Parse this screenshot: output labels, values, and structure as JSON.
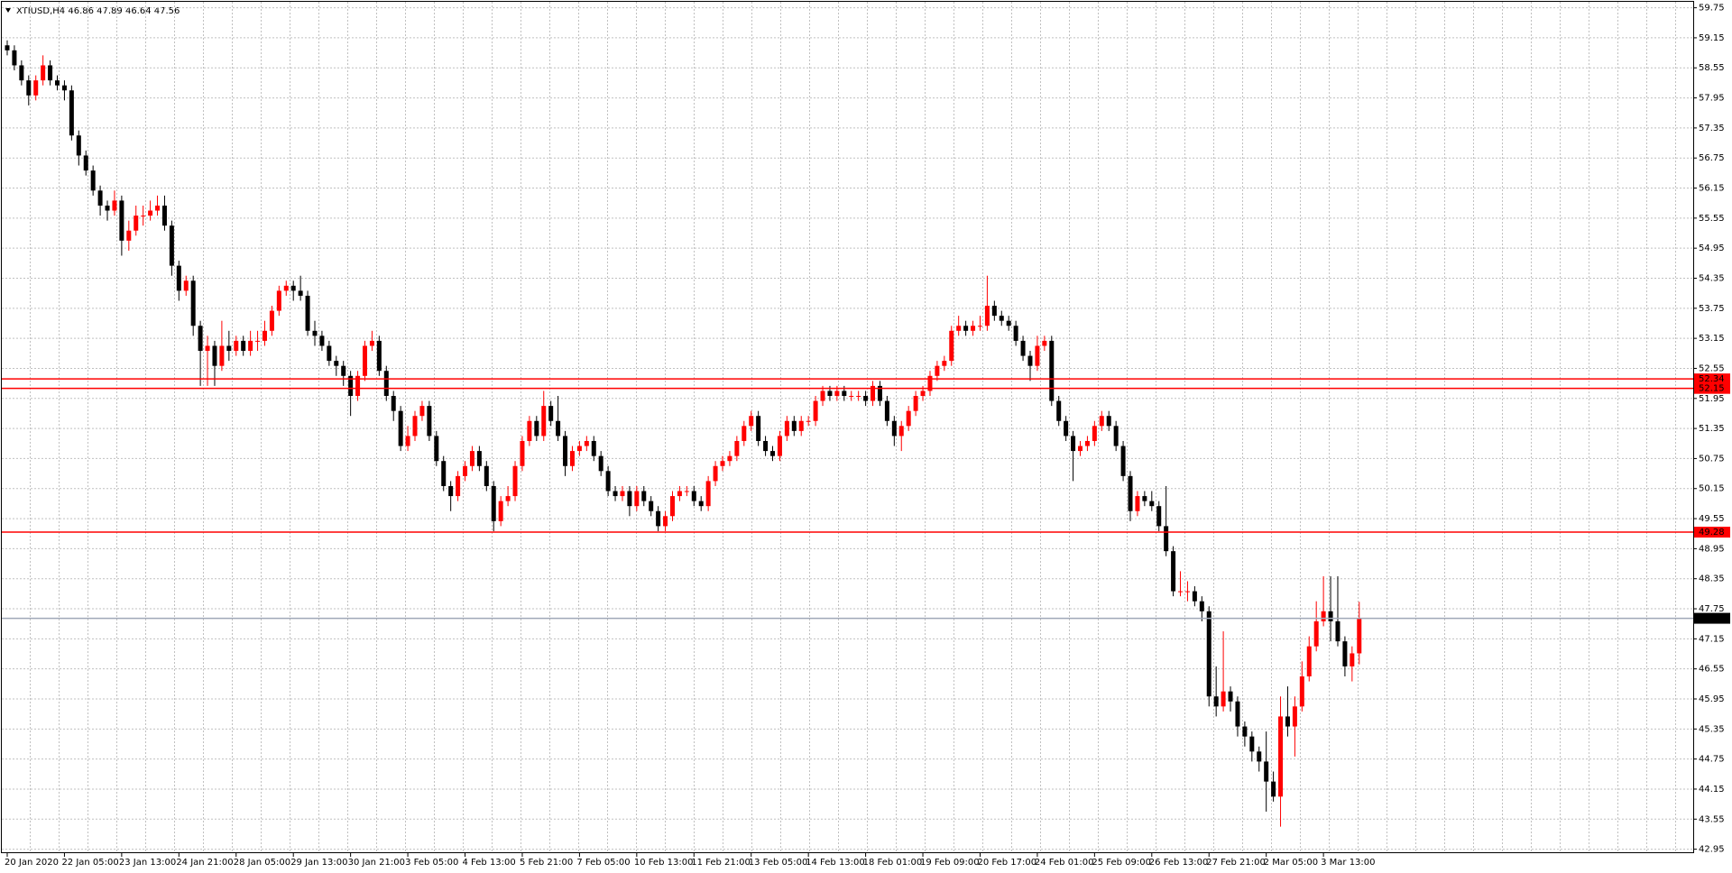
{
  "chart_data": {
    "type": "candlestick",
    "title": "XTIUSD,H4  46.86 47.89 46.64 47.56",
    "ylim": [
      42.95,
      59.75
    ],
    "yticks": [
      59.75,
      59.15,
      58.55,
      57.95,
      57.35,
      56.75,
      56.15,
      55.55,
      54.95,
      54.35,
      53.75,
      53.15,
      52.55,
      51.95,
      51.35,
      50.75,
      50.15,
      49.55,
      48.95,
      48.35,
      47.75,
      47.15,
      46.55,
      45.95,
      45.35,
      44.75,
      44.15,
      43.55,
      42.95
    ],
    "grid": true,
    "up_color": "#ff0000",
    "down_color": "#000000",
    "hlines": [
      {
        "value": 52.34,
        "color": "#ff0000"
      },
      {
        "value": 52.15,
        "color": "#ff0000"
      },
      {
        "value": 49.28,
        "color": "#ff0000"
      },
      {
        "value": 47.56,
        "color": "#a0a8b8"
      }
    ],
    "categories": [
      "20 Jan 2020",
      null,
      null,
      null,
      null,
      null,
      null,
      null,
      "22 Jan 05:00",
      null,
      null,
      null,
      null,
      null,
      null,
      null,
      "23 Jan 13:00",
      null,
      null,
      null,
      null,
      null,
      null,
      null,
      "24 Jan 21:00",
      null,
      null,
      null,
      null,
      null,
      null,
      null,
      "28 Jan 05:00",
      null,
      null,
      null,
      null,
      null,
      null,
      null,
      "29 Jan 13:00",
      null,
      null,
      null,
      null,
      null,
      null,
      null,
      "30 Jan 21:00",
      null,
      null,
      null,
      null,
      null,
      null,
      null,
      "3 Feb 05:00",
      null,
      null,
      null,
      null,
      null,
      null,
      null,
      "4 Feb 13:00",
      null,
      null,
      null,
      null,
      null,
      null,
      null,
      "5 Feb 21:00",
      null,
      null,
      null,
      null,
      null,
      null,
      null,
      "7 Feb 05:00",
      null,
      null,
      null,
      null,
      null,
      null,
      null,
      "10 Feb 13:00",
      null,
      null,
      null,
      null,
      null,
      null,
      null,
      "11 Feb 21:00",
      null,
      null,
      null,
      null,
      null,
      null,
      null,
      "13 Feb 05:00",
      null,
      null,
      null,
      null,
      null,
      null,
      null,
      "14 Feb 13:00",
      null,
      null,
      null,
      null,
      null,
      null,
      null,
      "18 Feb 01:00",
      null,
      null,
      null,
      null,
      null,
      null,
      null,
      "19 Feb 09:00",
      null,
      null,
      null,
      null,
      null,
      null,
      null,
      "20 Feb 17:00",
      null,
      null,
      null,
      null,
      null,
      null,
      null,
      "24 Feb 01:00",
      null,
      null,
      null,
      null,
      null,
      null,
      null,
      "25 Feb 09:00",
      null,
      null,
      null,
      null,
      null,
      null,
      null,
      "26 Feb 13:00",
      null,
      null,
      null,
      null,
      null,
      null,
      null,
      "27 Feb 21:00",
      null,
      null,
      null,
      null,
      null,
      null,
      null,
      "2 Mar 05:00",
      null,
      null,
      null,
      null,
      null,
      null,
      null,
      "3 Mar 13:00",
      null,
      null,
      null,
      null,
      null
    ],
    "candles": [
      [
        59.0,
        59.1,
        58.8,
        58.9
      ],
      [
        58.9,
        59.0,
        58.5,
        58.6
      ],
      [
        58.6,
        58.7,
        58.2,
        58.3
      ],
      [
        58.3,
        58.4,
        57.8,
        58.0
      ],
      [
        58.0,
        58.4,
        57.9,
        58.3
      ],
      [
        58.3,
        58.8,
        58.2,
        58.6
      ],
      [
        58.6,
        58.7,
        58.2,
        58.3
      ],
      [
        58.3,
        58.4,
        58.1,
        58.2
      ],
      [
        58.2,
        58.3,
        57.9,
        58.1
      ],
      [
        58.1,
        58.2,
        57.1,
        57.2
      ],
      [
        57.2,
        57.3,
        56.6,
        56.8
      ],
      [
        56.8,
        56.9,
        56.4,
        56.5
      ],
      [
        56.5,
        56.6,
        56.0,
        56.1
      ],
      [
        56.1,
        56.2,
        55.6,
        55.8
      ],
      [
        55.8,
        55.9,
        55.5,
        55.7
      ],
      [
        55.7,
        56.1,
        55.6,
        55.9
      ],
      [
        55.9,
        56.0,
        54.8,
        55.1
      ],
      [
        55.1,
        55.5,
        54.9,
        55.3
      ],
      [
        55.3,
        55.8,
        55.2,
        55.6
      ],
      [
        55.6,
        55.8,
        55.4,
        55.6
      ],
      [
        55.6,
        55.9,
        55.5,
        55.7
      ],
      [
        55.7,
        56.0,
        55.6,
        55.8
      ],
      [
        55.8,
        56.0,
        55.3,
        55.4
      ],
      [
        55.4,
        55.5,
        54.4,
        54.6
      ],
      [
        54.6,
        54.7,
        53.9,
        54.1
      ],
      [
        54.1,
        54.4,
        54.0,
        54.3
      ],
      [
        54.3,
        54.4,
        53.2,
        53.4
      ],
      [
        53.4,
        53.5,
        52.2,
        52.9
      ],
      [
        52.9,
        53.2,
        52.2,
        53.0
      ],
      [
        53.0,
        53.1,
        52.2,
        52.6
      ],
      [
        52.6,
        53.5,
        52.5,
        53.0
      ],
      [
        53.0,
        53.3,
        52.7,
        52.9
      ],
      [
        52.9,
        53.2,
        52.8,
        53.1
      ],
      [
        53.1,
        53.2,
        52.8,
        52.9
      ],
      [
        52.9,
        53.3,
        52.8,
        53.1
      ],
      [
        53.1,
        53.3,
        52.9,
        53.1
      ],
      [
        53.1,
        53.5,
        53.0,
        53.3
      ],
      [
        53.3,
        53.8,
        53.2,
        53.7
      ],
      [
        53.7,
        54.2,
        53.6,
        54.1
      ],
      [
        54.1,
        54.3,
        54.0,
        54.2
      ],
      [
        54.2,
        54.3,
        53.9,
        54.1
      ],
      [
        54.1,
        54.4,
        53.9,
        54.0
      ],
      [
        54.0,
        54.1,
        53.2,
        53.3
      ],
      [
        53.3,
        53.5,
        53.0,
        53.2
      ],
      [
        53.2,
        53.3,
        52.9,
        53.0
      ],
      [
        53.0,
        53.1,
        52.6,
        52.7
      ],
      [
        52.7,
        52.8,
        52.4,
        52.6
      ],
      [
        52.6,
        52.7,
        52.2,
        52.4
      ],
      [
        52.4,
        52.5,
        51.6,
        52.0
      ],
      [
        52.0,
        52.5,
        51.9,
        52.4
      ],
      [
        52.4,
        53.1,
        52.3,
        53.0
      ],
      [
        53.0,
        53.3,
        52.9,
        53.1
      ],
      [
        53.1,
        53.2,
        52.4,
        52.5
      ],
      [
        52.5,
        52.6,
        51.9,
        52.0
      ],
      [
        52.0,
        52.1,
        51.5,
        51.7
      ],
      [
        51.7,
        51.8,
        50.9,
        51.0
      ],
      [
        51.0,
        51.4,
        50.9,
        51.2
      ],
      [
        51.2,
        51.7,
        51.1,
        51.6
      ],
      [
        51.6,
        51.9,
        51.5,
        51.8
      ],
      [
        51.8,
        51.9,
        51.1,
        51.2
      ],
      [
        51.2,
        51.3,
        50.6,
        50.7
      ],
      [
        50.7,
        50.8,
        50.1,
        50.2
      ],
      [
        50.2,
        50.3,
        49.7,
        50.0
      ],
      [
        50.0,
        50.5,
        49.9,
        50.4
      ],
      [
        50.4,
        50.7,
        50.3,
        50.6
      ],
      [
        50.6,
        51.0,
        50.5,
        50.9
      ],
      [
        50.9,
        51.0,
        50.5,
        50.6
      ],
      [
        50.6,
        50.7,
        50.1,
        50.2
      ],
      [
        50.2,
        50.3,
        49.3,
        49.5
      ],
      [
        49.5,
        50.0,
        49.4,
        49.9
      ],
      [
        49.9,
        50.2,
        49.8,
        50.0
      ],
      [
        50.0,
        50.7,
        49.9,
        50.6
      ],
      [
        50.6,
        51.2,
        50.5,
        51.1
      ],
      [
        51.1,
        51.6,
        51.0,
        51.5
      ],
      [
        51.5,
        51.6,
        51.1,
        51.2
      ],
      [
        51.2,
        52.1,
        51.1,
        51.8
      ],
      [
        51.8,
        51.9,
        51.4,
        51.5
      ],
      [
        51.5,
        52.0,
        51.1,
        51.2
      ],
      [
        51.2,
        51.3,
        50.4,
        50.6
      ],
      [
        50.6,
        51.0,
        50.5,
        50.9
      ],
      [
        50.9,
        51.1,
        50.8,
        51.0
      ],
      [
        51.0,
        51.2,
        50.9,
        51.1
      ],
      [
        51.1,
        51.2,
        50.7,
        50.8
      ],
      [
        50.8,
        50.9,
        50.4,
        50.5
      ],
      [
        50.5,
        50.6,
        50.0,
        50.1
      ],
      [
        50.1,
        50.2,
        49.9,
        50.0
      ],
      [
        50.0,
        50.2,
        49.9,
        50.1
      ],
      [
        50.1,
        50.2,
        49.6,
        49.8
      ],
      [
        49.8,
        50.2,
        49.7,
        50.1
      ],
      [
        50.1,
        50.2,
        49.8,
        49.9
      ],
      [
        49.9,
        50.0,
        49.6,
        49.7
      ],
      [
        49.7,
        49.8,
        49.3,
        49.4
      ],
      [
        49.4,
        49.7,
        49.3,
        49.6
      ],
      [
        49.6,
        50.1,
        49.5,
        50.0
      ],
      [
        50.0,
        50.2,
        49.9,
        50.1
      ],
      [
        50.1,
        50.2,
        50.0,
        50.1
      ],
      [
        50.1,
        50.2,
        49.8,
        49.9
      ],
      [
        49.9,
        50.0,
        49.7,
        49.8
      ],
      [
        49.8,
        50.4,
        49.7,
        50.3
      ],
      [
        50.3,
        50.7,
        50.2,
        50.6
      ],
      [
        50.6,
        50.8,
        50.5,
        50.7
      ],
      [
        50.7,
        50.9,
        50.6,
        50.8
      ],
      [
        50.8,
        51.2,
        50.7,
        51.1
      ],
      [
        51.1,
        51.5,
        51.0,
        51.4
      ],
      [
        51.4,
        51.7,
        51.3,
        51.6
      ],
      [
        51.6,
        51.7,
        51.0,
        51.1
      ],
      [
        51.1,
        51.2,
        50.8,
        50.9
      ],
      [
        50.9,
        51.0,
        50.7,
        50.8
      ],
      [
        50.8,
        51.3,
        50.7,
        51.2
      ],
      [
        51.2,
        51.6,
        51.1,
        51.5
      ],
      [
        51.5,
        51.6,
        51.2,
        51.3
      ],
      [
        51.3,
        51.6,
        51.2,
        51.5
      ],
      [
        51.5,
        51.6,
        51.4,
        51.5
      ],
      [
        51.5,
        52.0,
        51.4,
        51.9
      ],
      [
        51.9,
        52.2,
        51.8,
        52.1
      ],
      [
        52.1,
        52.2,
        51.9,
        52.0
      ],
      [
        52.0,
        52.2,
        51.9,
        52.1
      ],
      [
        52.1,
        52.2,
        51.9,
        52.0
      ],
      [
        52.0,
        52.1,
        51.9,
        52.0
      ],
      [
        52.0,
        52.1,
        51.9,
        52.0
      ],
      [
        52.0,
        52.1,
        51.8,
        51.9
      ],
      [
        51.9,
        52.3,
        51.8,
        52.2
      ],
      [
        52.2,
        52.3,
        51.8,
        51.9
      ],
      [
        51.9,
        52.0,
        51.4,
        51.5
      ],
      [
        51.5,
        51.6,
        51.0,
        51.2
      ],
      [
        51.2,
        51.5,
        50.9,
        51.4
      ],
      [
        51.4,
        51.8,
        51.3,
        51.7
      ],
      [
        51.7,
        52.1,
        51.6,
        52.0
      ],
      [
        52.0,
        52.2,
        51.9,
        52.1
      ],
      [
        52.1,
        52.5,
        52.0,
        52.4
      ],
      [
        52.4,
        52.7,
        52.3,
        52.6
      ],
      [
        52.6,
        52.8,
        52.5,
        52.7
      ],
      [
        52.7,
        53.4,
        52.6,
        53.3
      ],
      [
        53.3,
        53.6,
        53.2,
        53.4
      ],
      [
        53.4,
        53.5,
        53.2,
        53.3
      ],
      [
        53.3,
        53.5,
        53.2,
        53.4
      ],
      [
        53.4,
        53.6,
        53.3,
        53.4
      ],
      [
        53.4,
        54.4,
        53.3,
        53.8
      ],
      [
        53.8,
        53.9,
        53.5,
        53.6
      ],
      [
        53.6,
        53.7,
        53.4,
        53.5
      ],
      [
        53.5,
        53.6,
        53.3,
        53.4
      ],
      [
        53.4,
        53.5,
        53.0,
        53.1
      ],
      [
        53.1,
        53.2,
        52.7,
        52.8
      ],
      [
        52.8,
        52.9,
        52.3,
        52.6
      ],
      [
        52.6,
        53.2,
        52.5,
        53.0
      ],
      [
        53.0,
        53.2,
        52.9,
        53.1
      ],
      [
        53.1,
        53.2,
        51.8,
        51.9
      ],
      [
        51.9,
        52.0,
        51.4,
        51.5
      ],
      [
        51.5,
        51.6,
        51.1,
        51.2
      ],
      [
        51.2,
        51.3,
        50.3,
        50.9
      ],
      [
        50.9,
        51.1,
        50.8,
        51.0
      ],
      [
        51.0,
        51.2,
        50.9,
        51.1
      ],
      [
        51.1,
        51.5,
        51.0,
        51.4
      ],
      [
        51.4,
        51.7,
        51.3,
        51.6
      ],
      [
        51.6,
        51.7,
        51.3,
        51.4
      ],
      [
        51.4,
        51.5,
        50.9,
        51.0
      ],
      [
        51.0,
        51.1,
        50.3,
        50.4
      ],
      [
        50.4,
        50.5,
        49.5,
        49.7
      ],
      [
        49.7,
        50.1,
        49.6,
        50.0
      ],
      [
        50.0,
        50.1,
        49.8,
        49.9
      ],
      [
        49.9,
        50.1,
        49.7,
        49.8
      ],
      [
        49.8,
        49.9,
        49.3,
        49.4
      ],
      [
        49.4,
        50.2,
        48.8,
        48.9
      ],
      [
        48.9,
        49.0,
        48.0,
        48.1
      ],
      [
        48.1,
        48.5,
        48.0,
        48.1
      ],
      [
        48.1,
        48.3,
        47.9,
        48.1
      ],
      [
        48.1,
        48.2,
        47.8,
        47.9
      ],
      [
        47.9,
        48.0,
        47.5,
        47.7
      ],
      [
        47.7,
        47.8,
        45.8,
        46.0
      ],
      [
        46.0,
        46.6,
        45.6,
        45.8
      ],
      [
        45.8,
        47.3,
        45.7,
        46.1
      ],
      [
        46.1,
        46.2,
        45.7,
        45.9
      ],
      [
        45.9,
        46.0,
        45.2,
        45.4
      ],
      [
        45.4,
        45.5,
        45.0,
        45.2
      ],
      [
        45.2,
        45.3,
        44.7,
        44.9
      ],
      [
        44.9,
        45.0,
        44.5,
        44.7
      ],
      [
        44.7,
        45.3,
        43.7,
        44.3
      ],
      [
        44.3,
        44.5,
        43.9,
        44.0
      ],
      [
        44.0,
        46.0,
        43.4,
        45.6
      ],
      [
        45.6,
        46.2,
        45.2,
        45.4
      ],
      [
        45.4,
        46.0,
        44.8,
        45.8
      ],
      [
        45.8,
        46.7,
        45.7,
        46.4
      ],
      [
        46.4,
        47.2,
        46.3,
        47.0
      ],
      [
        47.0,
        47.9,
        46.9,
        47.5
      ],
      [
        47.5,
        48.4,
        47.4,
        47.7
      ],
      [
        47.7,
        48.4,
        47.1,
        47.5
      ],
      [
        47.5,
        48.4,
        47.0,
        47.1
      ],
      [
        47.1,
        47.2,
        46.4,
        46.6
      ],
      [
        46.6,
        47.0,
        46.3,
        46.86
      ],
      [
        46.86,
        47.89,
        46.64,
        47.56
      ]
    ]
  }
}
